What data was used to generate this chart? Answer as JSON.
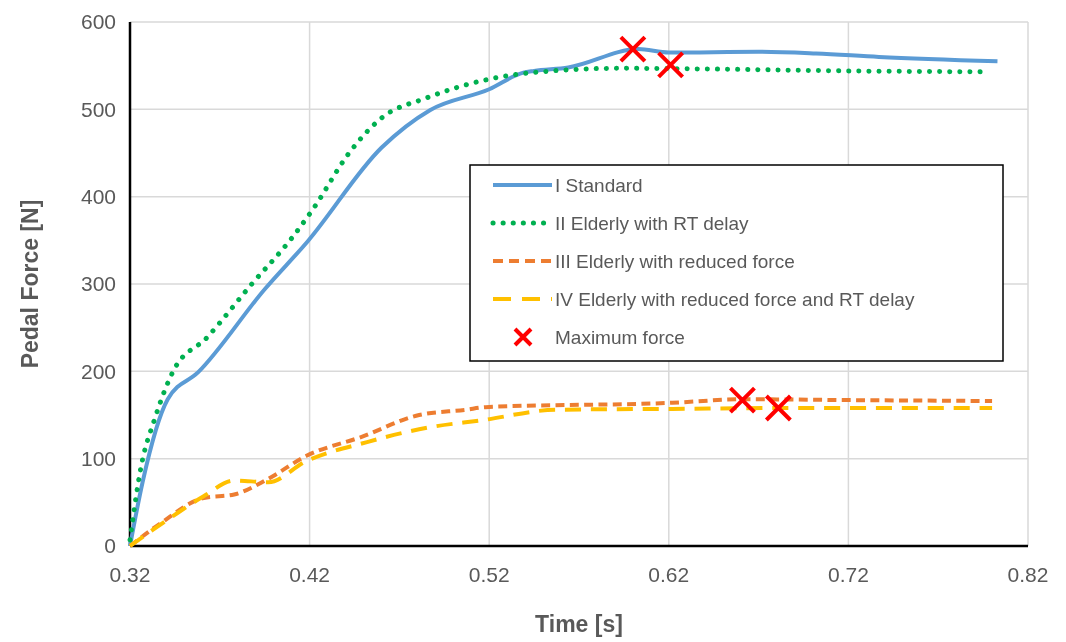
{
  "chart_data": {
    "type": "line",
    "xlabel": "Time [s]",
    "ylabel": "Pedal Force [N]",
    "xlim": [
      0.32,
      0.82
    ],
    "xticks": [
      0.32,
      0.42,
      0.52,
      0.62,
      0.72,
      0.82
    ],
    "ylim": [
      0,
      600
    ],
    "yticks": [
      0,
      100,
      200,
      300,
      400,
      500,
      600
    ],
    "grid": true,
    "legend": "right",
    "series": [
      {
        "name": "I Standard",
        "color": "#5b9bd5",
        "line_style": "solid",
        "x": [
          0.32,
          0.327,
          0.341,
          0.358,
          0.395,
          0.419,
          0.46,
          0.487,
          0.52,
          0.539,
          0.545,
          0.564,
          0.603,
          0.62,
          0.67,
          0.702,
          0.737,
          0.803
        ],
        "values": [
          0,
          73,
          168,
          199,
          294,
          349,
          456,
          499,
          523,
          542,
          544,
          548,
          569,
          565,
          566,
          564,
          560,
          555
        ]
      },
      {
        "name": "II Elderly with RT delay",
        "color": "#00b050",
        "line_style": "dotted",
        "x": [
          0.32,
          0.326,
          0.334,
          0.344,
          0.363,
          0.387,
          0.411,
          0.422,
          0.442,
          0.46,
          0.485,
          0.521,
          0.549,
          0.593,
          0.649,
          0.718,
          0.797
        ],
        "values": [
          7,
          89,
          147,
          200,
          239,
          298,
          355,
          386,
          450,
          490,
          513,
          535,
          543,
          547,
          546,
          544,
          543
        ]
      },
      {
        "name": "III Elderly with reduced force",
        "color": "#ed7d31",
        "line_style": "dashed",
        "x": [
          0.32,
          0.337,
          0.361,
          0.378,
          0.397,
          0.418,
          0.449,
          0.481,
          0.507,
          0.518,
          0.622,
          0.661,
          0.725,
          0.8
        ],
        "values": [
          0,
          26,
          55,
          59,
          77,
          103,
          125,
          150,
          156,
          159,
          164,
          168,
          167,
          166
        ]
      },
      {
        "name": "IV Elderly with reduced force and RT delay",
        "color": "#ffc000",
        "line_style": "long-dashed",
        "x": [
          0.32,
          0.343,
          0.361,
          0.378,
          0.397,
          0.418,
          0.452,
          0.487,
          0.516,
          0.557,
          0.622,
          0.681,
          0.8
        ],
        "values": [
          0,
          33,
          57,
          75,
          73,
          97,
          119,
          136,
          144,
          156,
          157,
          158,
          158
        ]
      },
      {
        "name": "Maximum force",
        "type": "scatter",
        "marker": "cross",
        "color": "#ff0000",
        "x": [
          0.6,
          0.621,
          0.661,
          0.681
        ],
        "values": [
          569,
          551,
          167,
          158
        ]
      }
    ]
  }
}
